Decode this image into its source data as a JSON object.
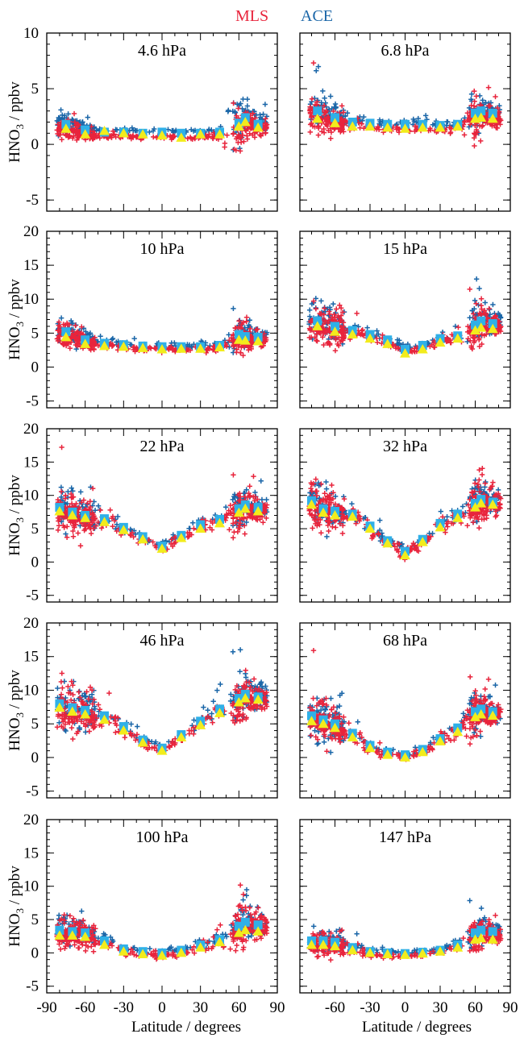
{
  "legend": {
    "entries": [
      {
        "label": "MLS",
        "color": "#e8243c"
      },
      {
        "label": "ACE",
        "color": "#1a66a8"
      }
    ]
  },
  "colors": {
    "mls": "#e8243c",
    "ace": "#1a66a8",
    "ace_mean": "#2fb0e8",
    "mls_mean": "#f2ec1c"
  },
  "ylabel_main": "HNO",
  "ylabel_sub": "3",
  "ylabel_tail": " / ppbv",
  "xlabel": "Latitude / degrees",
  "chart_data": [
    {
      "type": "scatter",
      "title": "4.6 hPa",
      "xlim": [
        -90,
        90
      ],
      "ylim": [
        -6,
        10
      ],
      "yticks": [
        -5,
        0,
        5,
        10
      ],
      "lat": [
        -75,
        -60,
        -45,
        -30,
        -15,
        0,
        15,
        30,
        45,
        60,
        65,
        75
      ],
      "ace_mean": [
        1.8,
        1.3,
        1.1,
        1.1,
        1.0,
        1.1,
        1.0,
        1.0,
        1.1,
        1.9,
        2.4,
        1.8
      ],
      "mls_mean": [
        1.4,
        0.9,
        1.2,
        1.0,
        0.9,
        0.8,
        0.6,
        0.9,
        0.9,
        1.6,
        2.0,
        1.5
      ],
      "spread": [
        0.9,
        0.5,
        0.2,
        0.2,
        0.2,
        0.2,
        0.2,
        0.2,
        0.3,
        2.5,
        1.5,
        0.7
      ]
    },
    {
      "type": "scatter",
      "title": "6.8 hPa",
      "xlim": [
        -90,
        90
      ],
      "ylim": [
        -6,
        10
      ],
      "yticks": [
        -5,
        0,
        5,
        10
      ],
      "lat": [
        -75,
        -60,
        -45,
        -30,
        -15,
        0,
        15,
        30,
        45,
        60,
        65,
        75
      ],
      "ace_mean": [
        3.0,
        2.4,
        2.0,
        1.9,
        1.8,
        1.8,
        1.8,
        1.7,
        1.8,
        2.8,
        3.0,
        2.8
      ],
      "mls_mean": [
        2.3,
        1.9,
        1.6,
        1.6,
        1.5,
        1.4,
        1.5,
        1.5,
        1.6,
        2.3,
        2.4,
        2.3
      ],
      "spread": [
        1.4,
        0.9,
        0.5,
        0.4,
        0.3,
        0.3,
        0.3,
        0.3,
        0.4,
        1.8,
        1.5,
        0.8
      ]
    },
    {
      "type": "scatter",
      "title": "10 hPa",
      "xlim": [
        -90,
        90
      ],
      "ylim": [
        -6,
        20
      ],
      "yticks": [
        -5,
        0,
        5,
        10,
        15,
        20
      ],
      "lat": [
        -75,
        -60,
        -45,
        -30,
        -15,
        0,
        15,
        30,
        45,
        60,
        65,
        75
      ],
      "ace_mean": [
        5.2,
        4.0,
        3.5,
        3.3,
        3.1,
        3.0,
        3.0,
        3.0,
        3.2,
        4.8,
        4.5,
        4.4
      ],
      "mls_mean": [
        4.4,
        3.4,
        3.1,
        3.0,
        2.8,
        2.6,
        2.7,
        2.7,
        2.9,
        4.0,
        3.9,
        3.8
      ],
      "spread": [
        1.8,
        1.4,
        0.6,
        0.5,
        0.4,
        0.4,
        0.4,
        0.4,
        0.5,
        2.2,
        1.8,
        1.0
      ]
    },
    {
      "type": "scatter",
      "title": "15 hPa",
      "xlim": [
        -90,
        90
      ],
      "ylim": [
        -6,
        20
      ],
      "yticks": [
        -5,
        0,
        5,
        10,
        15,
        20
      ],
      "lat": [
        -75,
        -60,
        -45,
        -30,
        -15,
        0,
        15,
        30,
        45,
        60,
        65,
        75
      ],
      "ace_mean": [
        6.8,
        6.0,
        5.4,
        4.8,
        4.0,
        2.6,
        3.2,
        4.2,
        4.6,
        6.2,
        6.8,
        6.4
      ],
      "mls_mean": [
        6.0,
        5.2,
        4.8,
        4.2,
        3.4,
        2.0,
        2.6,
        3.6,
        4.2,
        5.4,
        5.8,
        5.6
      ],
      "spread": [
        2.4,
        2.8,
        1.2,
        0.8,
        0.6,
        0.5,
        0.5,
        0.6,
        0.6,
        3.0,
        2.6,
        1.4
      ]
    },
    {
      "type": "scatter",
      "title": "22 hPa",
      "xlim": [
        -90,
        90
      ],
      "ylim": [
        -6,
        20
      ],
      "yticks": [
        -5,
        0,
        5,
        10,
        15,
        20
      ],
      "lat": [
        -80,
        -70,
        -60,
        -45,
        -30,
        -15,
        0,
        15,
        30,
        45,
        60,
        65,
        75
      ],
      "ace_mean": [
        8.2,
        7.5,
        7.0,
        6.5,
        5.2,
        3.8,
        2.4,
        4.0,
        5.6,
        6.4,
        8.0,
        8.6,
        8.2
      ],
      "mls_mean": [
        7.6,
        7.0,
        6.6,
        6.0,
        4.8,
        3.4,
        2.0,
        3.6,
        5.0,
        5.8,
        7.4,
        8.0,
        7.6
      ],
      "spread": [
        2.8,
        3.0,
        2.6,
        1.4,
        1.0,
        0.8,
        0.6,
        0.8,
        1.0,
        1.2,
        3.0,
        2.6,
        1.6
      ]
    },
    {
      "type": "scatter",
      "title": "32 hPa",
      "xlim": [
        -90,
        90
      ],
      "ylim": [
        -6,
        20
      ],
      "yticks": [
        -5,
        0,
        5,
        10,
        15,
        20
      ],
      "lat": [
        -80,
        -70,
        -60,
        -45,
        -30,
        -15,
        0,
        15,
        30,
        45,
        60,
        65,
        75
      ],
      "ace_mean": [
        9.2,
        8.0,
        7.6,
        7.2,
        5.4,
        3.2,
        1.6,
        3.4,
        5.8,
        7.2,
        8.8,
        9.4,
        9.0
      ],
      "mls_mean": [
        8.6,
        7.4,
        7.0,
        6.8,
        5.0,
        2.8,
        1.0,
        3.0,
        5.2,
        6.6,
        8.2,
        8.8,
        8.6
      ],
      "spread": [
        3.0,
        3.4,
        2.8,
        1.6,
        1.2,
        0.9,
        0.7,
        0.9,
        1.0,
        1.2,
        3.0,
        2.8,
        1.8
      ]
    },
    {
      "type": "scatter",
      "title": "46 hPa",
      "xlim": [
        -90,
        90
      ],
      "ylim": [
        -6,
        20
      ],
      "yticks": [
        -5,
        0,
        5,
        10,
        15,
        20
      ],
      "lat": [
        -80,
        -70,
        -60,
        -45,
        -30,
        -15,
        0,
        15,
        30,
        45,
        60,
        65,
        75
      ],
      "ace_mean": [
        8.0,
        7.4,
        7.0,
        6.2,
        4.6,
        2.6,
        1.4,
        3.4,
        5.4,
        7.2,
        8.8,
        9.4,
        9.0
      ],
      "mls_mean": [
        7.4,
        6.8,
        6.4,
        5.6,
        4.0,
        2.2,
        1.0,
        3.0,
        4.8,
        6.6,
        8.2,
        8.8,
        8.6
      ],
      "spread": [
        3.6,
        3.8,
        3.0,
        1.6,
        1.2,
        0.8,
        0.6,
        0.8,
        1.0,
        1.4,
        3.2,
        2.8,
        1.8
      ]
    },
    {
      "type": "scatter",
      "title": "68 hPa",
      "xlim": [
        -90,
        90
      ],
      "ylim": [
        -6,
        20
      ],
      "yticks": [
        -5,
        0,
        5,
        10,
        15,
        20
      ],
      "lat": [
        -80,
        -70,
        -60,
        -45,
        -30,
        -15,
        0,
        15,
        30,
        45,
        60,
        65,
        75
      ],
      "ace_mean": [
        6.2,
        5.6,
        5.0,
        3.6,
        1.8,
        0.8,
        0.4,
        1.2,
        2.8,
        4.4,
        6.8,
        7.2,
        6.8
      ],
      "mls_mean": [
        5.4,
        5.0,
        4.4,
        3.0,
        1.4,
        0.4,
        0.0,
        0.8,
        2.4,
        3.8,
        6.0,
        6.4,
        6.2
      ],
      "spread": [
        3.0,
        3.2,
        2.8,
        1.4,
        0.9,
        0.6,
        0.5,
        0.6,
        0.9,
        1.2,
        3.2,
        2.8,
        1.6
      ]
    },
    {
      "type": "scatter",
      "title": "100 hPa",
      "xlim": [
        -90,
        90
      ],
      "ylim": [
        -6,
        20
      ],
      "yticks": [
        -5,
        0,
        5,
        10,
        15,
        20
      ],
      "lat": [
        -80,
        -70,
        -60,
        -45,
        -30,
        -15,
        0,
        15,
        30,
        45,
        60,
        65,
        75
      ],
      "ace_mean": [
        3.4,
        3.2,
        3.0,
        1.8,
        0.6,
        0.2,
        0.0,
        0.4,
        1.2,
        2.0,
        4.0,
        4.6,
        4.2
      ],
      "mls_mean": [
        2.6,
        2.6,
        2.4,
        1.2,
        0.2,
        -0.2,
        -0.4,
        0.0,
        0.8,
        1.6,
        3.0,
        3.4,
        3.2
      ],
      "spread": [
        2.0,
        2.4,
        2.0,
        1.0,
        0.6,
        0.5,
        0.5,
        0.5,
        0.6,
        1.0,
        3.0,
        2.6,
        1.6
      ]
    },
    {
      "type": "scatter",
      "title": "147 hPa",
      "xlim": [
        -90,
        90
      ],
      "ylim": [
        -6,
        20
      ],
      "yticks": [
        -5,
        0,
        5,
        10,
        15,
        20
      ],
      "lat": [
        -80,
        -70,
        -60,
        -45,
        -30,
        -15,
        0,
        15,
        30,
        45,
        60,
        65,
        75
      ],
      "ace_mean": [
        1.8,
        1.8,
        1.6,
        0.8,
        0.2,
        0.0,
        -0.1,
        0.1,
        0.4,
        1.2,
        3.0,
        3.4,
        3.2
      ],
      "mls_mean": [
        1.2,
        1.2,
        1.0,
        0.4,
        0.0,
        -0.2,
        -0.3,
        -0.1,
        0.2,
        0.8,
        2.0,
        2.2,
        2.0
      ],
      "spread": [
        1.4,
        1.6,
        1.4,
        0.8,
        0.5,
        0.4,
        0.4,
        0.4,
        0.5,
        0.8,
        2.4,
        2.2,
        1.2
      ]
    }
  ],
  "xticks_left": [
    -90,
    -60,
    -30,
    0,
    30,
    60,
    90
  ],
  "xticks_right": [
    -60,
    -30,
    0,
    30,
    60,
    90
  ]
}
